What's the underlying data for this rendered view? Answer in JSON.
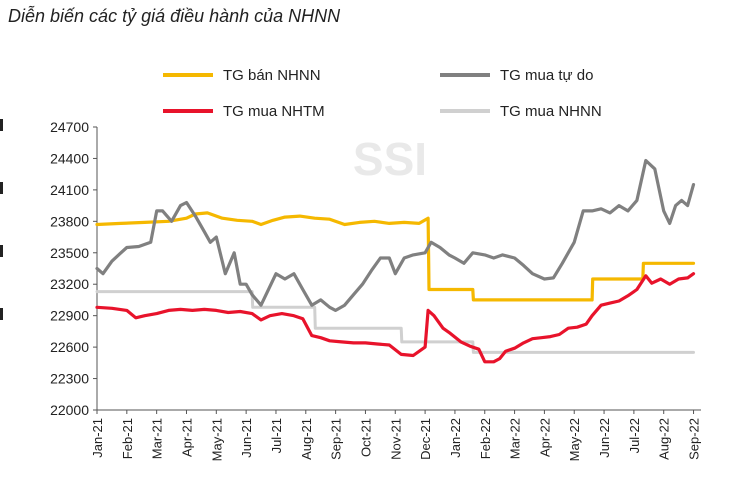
{
  "chart_data": {
    "type": "line",
    "title": "Diễn biến các tỷ giá điều hành của NHNN",
    "watermark": "SSI",
    "xlabel": "",
    "ylabel": "",
    "ylim": [
      22000,
      24700
    ],
    "yticks": [
      22000,
      22300,
      22600,
      22900,
      23200,
      23500,
      23800,
      24100,
      24400,
      24700
    ],
    "xlim": [
      0,
      20.25
    ],
    "categories": [
      "Jan-21",
      "Feb-21",
      "Mar-21",
      "Apr-21",
      "May-21",
      "Jun-21",
      "Jul-21",
      "Aug-21",
      "Sep-21",
      "Oct-21",
      "Nov-21",
      "Dec-21",
      "Jan-22",
      "Feb-22",
      "Mar-22",
      "Apr-22",
      "May-22",
      "Jun-22",
      "Jul-22",
      "Aug-22",
      "Sep-22"
    ],
    "legend_position": "top",
    "grid": false,
    "series": [
      {
        "name": "TG bán NHNN",
        "color": "#f5b800",
        "step": false,
        "x": [
          0,
          0.8,
          1.6,
          2.4,
          3.0,
          3.3,
          3.7,
          4.2,
          4.7,
          5.2,
          5.5,
          5.9,
          6.3,
          6.8,
          7.3,
          7.8,
          8.3,
          8.8,
          9.3,
          9.8,
          10.3,
          10.8,
          11.1,
          11.12,
          11.13,
          12.0,
          12.6,
          12.62,
          13.5,
          14.5,
          15.5,
          16.5,
          16.6,
          16.62,
          17.5,
          18.3,
          18.32,
          19.0,
          20.0
        ],
        "y": [
          23770,
          23780,
          23790,
          23800,
          23830,
          23870,
          23880,
          23830,
          23810,
          23800,
          23770,
          23810,
          23840,
          23850,
          23830,
          23820,
          23770,
          23790,
          23800,
          23780,
          23790,
          23780,
          23830,
          23400,
          23150,
          23150,
          23150,
          23050,
          23050,
          23050,
          23050,
          23050,
          23050,
          23250,
          23250,
          23250,
          23400,
          23400,
          23400
        ]
      },
      {
        "name": "TG mua tự do",
        "color": "#808080",
        "step": false,
        "x": [
          0,
          0.2,
          0.5,
          0.8,
          1.0,
          1.4,
          1.8,
          2.0,
          2.2,
          2.5,
          2.8,
          3.0,
          3.3,
          3.6,
          3.8,
          4.0,
          4.3,
          4.6,
          4.8,
          5.0,
          5.2,
          5.5,
          5.8,
          6.0,
          6.3,
          6.6,
          6.9,
          7.2,
          7.5,
          7.8,
          8.0,
          8.3,
          8.6,
          8.9,
          9.2,
          9.5,
          9.8,
          10.0,
          10.3,
          10.6,
          11.0,
          11.2,
          11.5,
          11.8,
          12.0,
          12.3,
          12.6,
          13.0,
          13.3,
          13.6,
          14.0,
          14.3,
          14.6,
          15.0,
          15.3,
          15.6,
          16.0,
          16.3,
          16.6,
          16.9,
          17.2,
          17.5,
          17.8,
          18.1,
          18.4,
          18.7,
          19.0,
          19.2,
          19.4,
          19.6,
          19.8,
          20.0
        ],
        "y": [
          23350,
          23300,
          23420,
          23500,
          23550,
          23560,
          23600,
          23900,
          23900,
          23800,
          23950,
          23980,
          23850,
          23700,
          23600,
          23650,
          23300,
          23500,
          23200,
          23200,
          23100,
          23000,
          23180,
          23300,
          23250,
          23300,
          23150,
          23000,
          23050,
          22980,
          22950,
          23000,
          23100,
          23200,
          23330,
          23450,
          23450,
          23300,
          23450,
          23480,
          23500,
          23600,
          23550,
          23480,
          23450,
          23400,
          23500,
          23480,
          23450,
          23480,
          23450,
          23380,
          23300,
          23250,
          23260,
          23400,
          23600,
          23900,
          23900,
          23920,
          23880,
          23950,
          23900,
          24000,
          24380,
          24300,
          23900,
          23780,
          23950,
          24000,
          23950,
          24150
        ]
      },
      {
        "name": "TG mua NHTM",
        "color": "#e8132b",
        "step": false,
        "x": [
          0,
          0.5,
          1.0,
          1.3,
          1.6,
          2.0,
          2.4,
          2.8,
          3.2,
          3.6,
          4.0,
          4.4,
          4.8,
          5.2,
          5.5,
          5.8,
          6.2,
          6.6,
          6.9,
          7.2,
          7.5,
          7.8,
          8.2,
          8.6,
          9.0,
          9.4,
          9.8,
          10.2,
          10.6,
          11.0,
          11.1,
          11.3,
          11.6,
          11.8,
          12.2,
          12.5,
          12.8,
          13.0,
          13.3,
          13.5,
          13.7,
          14.0,
          14.3,
          14.6,
          14.9,
          15.2,
          15.5,
          15.8,
          16.1,
          16.4,
          16.6,
          16.9,
          17.2,
          17.5,
          17.8,
          18.1,
          18.4,
          18.6,
          18.9,
          19.2,
          19.5,
          19.8,
          20.0
        ],
        "y": [
          22980,
          22970,
          22950,
          22880,
          22900,
          22920,
          22950,
          22960,
          22950,
          22960,
          22950,
          22930,
          22940,
          22920,
          22860,
          22900,
          22920,
          22900,
          22870,
          22710,
          22690,
          22660,
          22650,
          22640,
          22640,
          22630,
          22620,
          22530,
          22520,
          22600,
          22950,
          22900,
          22780,
          22740,
          22650,
          22610,
          22580,
          22460,
          22460,
          22490,
          22560,
          22590,
          22640,
          22680,
          22690,
          22700,
          22720,
          22780,
          22790,
          22820,
          22900,
          23000,
          23020,
          23040,
          23090,
          23150,
          23280,
          23210,
          23250,
          23200,
          23250,
          23260,
          23300
        ]
      },
      {
        "name": "TG mua NHNN",
        "color": "#d0d0d0",
        "step": true,
        "x": [
          0,
          5.2,
          5.22,
          7.3,
          7.32,
          10.2,
          10.22,
          12.6,
          12.62,
          20.0
        ],
        "y": [
          23130,
          23130,
          22980,
          22980,
          22780,
          22780,
          22650,
          22650,
          22550,
          22550
        ]
      }
    ]
  }
}
